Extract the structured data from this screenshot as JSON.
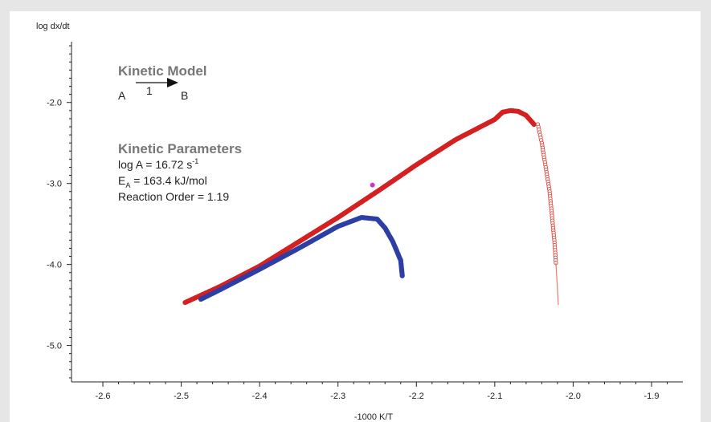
{
  "chart_data": {
    "type": "line",
    "xlabel": "-1000 K/T",
    "ylabel": "log dx/dt",
    "xlim": [
      -2.64,
      -1.86
    ],
    "ylim": [
      -5.45,
      -1.25
    ],
    "x_ticks": [
      -2.6,
      -2.5,
      -2.4,
      -2.3,
      -2.2,
      -2.1,
      -2.0,
      -1.9
    ],
    "x_tick_labels": [
      "-2.6",
      "-2.5",
      "-2.4",
      "-2.3",
      "-2.2",
      "-2.1",
      "-2.0",
      "-1.9"
    ],
    "y_ticks": [
      -2.0,
      -3.0,
      -4.0,
      -5.0
    ],
    "y_tick_labels": [
      "-2.0",
      "-3.0",
      "-4.0",
      "-5.0"
    ],
    "grid": false,
    "series": [
      {
        "color": "#d42020",
        "marker": "filled",
        "points": [
          [
            -2.495,
            -4.47
          ],
          [
            -2.45,
            -4.27
          ],
          [
            -2.4,
            -4.02
          ],
          [
            -2.35,
            -3.72
          ],
          [
            -2.3,
            -3.42
          ],
          [
            -2.25,
            -3.1
          ],
          [
            -2.2,
            -2.77
          ],
          [
            -2.15,
            -2.46
          ],
          [
            -2.12,
            -2.31
          ],
          [
            -2.1,
            -2.21
          ],
          [
            -2.09,
            -2.12
          ],
          [
            -2.08,
            -2.1
          ],
          [
            -2.07,
            -2.11
          ],
          [
            -2.06,
            -2.16
          ],
          [
            -2.05,
            -2.27
          ]
        ]
      },
      {
        "color": "#e0443a",
        "marker": "open",
        "points": [
          [
            -2.045,
            -2.27
          ],
          [
            -2.04,
            -2.5
          ],
          [
            -2.035,
            -2.8
          ],
          [
            -2.03,
            -3.1
          ],
          [
            -2.027,
            -3.4
          ],
          [
            -2.024,
            -3.7
          ],
          [
            -2.022,
            -3.98
          ]
        ]
      },
      {
        "color": "#ee7777",
        "marker": "line",
        "points": [
          [
            -2.022,
            -3.98
          ],
          [
            -2.02,
            -4.3
          ],
          [
            -2.019,
            -4.5
          ]
        ]
      },
      {
        "color": "#2d3ea6",
        "marker": "filled",
        "points": [
          [
            -2.475,
            -4.43
          ],
          [
            -2.45,
            -4.31
          ],
          [
            -2.4,
            -4.06
          ],
          [
            -2.35,
            -3.8
          ],
          [
            -2.3,
            -3.53
          ],
          [
            -2.27,
            -3.42
          ],
          [
            -2.25,
            -3.44
          ],
          [
            -2.24,
            -3.55
          ],
          [
            -2.23,
            -3.72
          ],
          [
            -2.22,
            -3.95
          ],
          [
            -2.218,
            -4.14
          ]
        ]
      }
    ],
    "highlight_point": {
      "x": -2.256,
      "y": -3.02,
      "color": "#cc33cc"
    }
  },
  "annotation": {
    "model_heading": "Kinetic Model",
    "reactant": "A",
    "step": "1",
    "product": "B",
    "params_heading": "Kinetic Parameters",
    "logA_text": "log A = 16.72 s",
    "logA_sup": "-1",
    "ea_E": "E",
    "ea_sub": "A",
    "ea_value": " = 163.4 kJ/mol",
    "order_text": "Reaction Order = 1.19"
  }
}
